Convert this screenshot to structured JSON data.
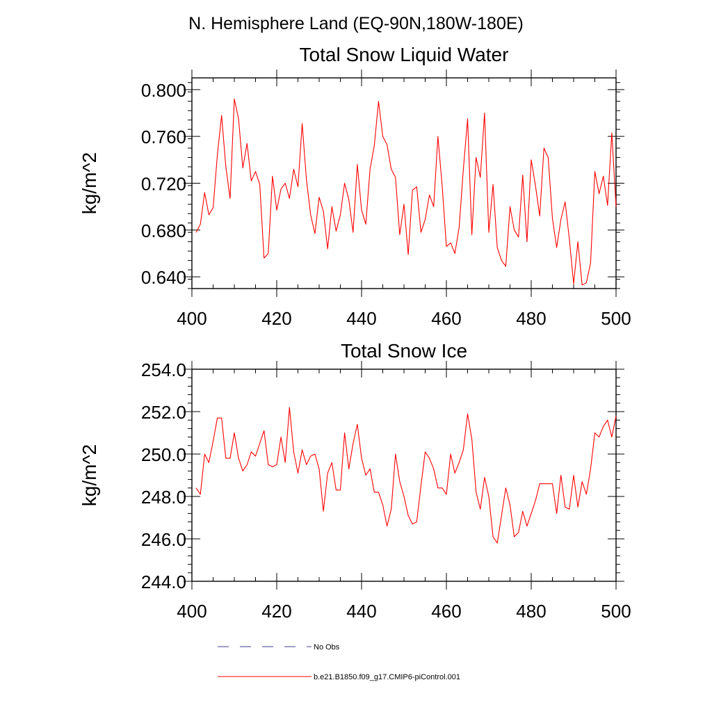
{
  "page": {
    "suptitle": "N. Hemisphere Land (EQ-90N,180W-180E)"
  },
  "legend": {
    "entries": [
      {
        "label": "No Obs",
        "color": "#3b3b8a",
        "dash": true
      },
      {
        "label": "b.e21.B1850.f09_g17.CMIP6-piControl.001",
        "color": "#ff0000",
        "dash": false
      }
    ]
  },
  "chart_data": [
    {
      "type": "line",
      "title": "Total Snow Liquid Water",
      "xlabel": "",
      "ylabel": "kg/m^2",
      "xlim": [
        400,
        500
      ],
      "ylim": [
        0.63,
        0.81
      ],
      "xticks": [
        400,
        420,
        440,
        460,
        480,
        500
      ],
      "xtick_labels": [
        "400",
        "420",
        "440",
        "460",
        "480",
        "500"
      ],
      "yticks": [
        0.64,
        0.68,
        0.72,
        0.76,
        0.8
      ],
      "ytick_labels": [
        "0.640",
        "0.680",
        "0.720",
        "0.760",
        "0.800"
      ],
      "grid": false,
      "series": [
        {
          "name": "b.e21.B1850.f09_g17.CMIP6-piControl.001",
          "color": "#ff0000",
          "x_start": 401,
          "x_step": 1,
          "values": [
            0.678,
            0.685,
            0.712,
            0.693,
            0.699,
            0.744,
            0.778,
            0.734,
            0.707,
            0.792,
            0.775,
            0.733,
            0.754,
            0.722,
            0.73,
            0.719,
            0.656,
            0.66,
            0.726,
            0.697,
            0.715,
            0.72,
            0.707,
            0.732,
            0.717,
            0.771,
            0.723,
            0.693,
            0.677,
            0.708,
            0.696,
            0.664,
            0.7,
            0.679,
            0.693,
            0.72,
            0.706,
            0.678,
            0.736,
            0.697,
            0.685,
            0.732,
            0.752,
            0.79,
            0.76,
            0.753,
            0.732,
            0.725,
            0.676,
            0.702,
            0.659,
            0.714,
            0.717,
            0.678,
            0.689,
            0.71,
            0.7,
            0.76,
            0.718,
            0.666,
            0.669,
            0.66,
            0.682,
            0.732,
            0.775,
            0.676,
            0.742,
            0.725,
            0.78,
            0.678,
            0.719,
            0.665,
            0.654,
            0.649,
            0.7,
            0.68,
            0.674,
            0.727,
            0.67,
            0.74,
            0.718,
            0.692,
            0.75,
            0.742,
            0.69,
            0.665,
            0.689,
            0.704,
            0.672,
            0.634,
            0.67,
            0.633,
            0.635,
            0.652,
            0.73,
            0.711,
            0.726,
            0.701,
            0.763,
            0.7
          ]
        }
      ]
    },
    {
      "type": "line",
      "title": "Total Snow Ice",
      "xlabel": "",
      "ylabel": "kg/m^2",
      "xlim": [
        400,
        500
      ],
      "ylim": [
        244.0,
        254.0
      ],
      "xticks": [
        400,
        420,
        440,
        460,
        480,
        500
      ],
      "xtick_labels": [
        "400",
        "420",
        "440",
        "460",
        "480",
        "500"
      ],
      "yticks": [
        244.0,
        246.0,
        248.0,
        250.0,
        252.0,
        254.0
      ],
      "ytick_labels": [
        "244.0",
        "246.0",
        "248.0",
        "250.0",
        "252.0",
        "254.0"
      ],
      "grid": false,
      "series": [
        {
          "name": "b.e21.B1850.f09_g17.CMIP6-piControl.001",
          "color": "#ff0000",
          "x_start": 401,
          "x_step": 1,
          "values": [
            248.4,
            248.1,
            250.0,
            249.6,
            250.6,
            251.7,
            251.7,
            249.8,
            249.8,
            251.0,
            249.8,
            249.2,
            249.5,
            250.1,
            249.9,
            250.5,
            251.1,
            249.5,
            249.4,
            249.5,
            250.8,
            249.6,
            252.2,
            250.1,
            249.1,
            250.2,
            249.5,
            249.9,
            250.0,
            249.3,
            247.3,
            249.1,
            249.6,
            248.3,
            248.3,
            251.0,
            249.3,
            250.5,
            251.4,
            249.8,
            249.0,
            249.3,
            248.2,
            248.2,
            247.6,
            246.6,
            247.4,
            250.0,
            248.7,
            248.0,
            247.1,
            246.7,
            246.8,
            248.5,
            250.1,
            249.8,
            249.3,
            248.4,
            248.4,
            248.1,
            250.0,
            249.1,
            249.6,
            250.2,
            251.9,
            250.7,
            248.2,
            247.4,
            248.9,
            248.0,
            246.1,
            245.8,
            247.1,
            248.4,
            247.6,
            246.1,
            246.3,
            247.3,
            246.6,
            247.2,
            247.8,
            248.6,
            248.6,
            248.6,
            248.6,
            247.2,
            249.0,
            247.5,
            247.4,
            249.0,
            247.5,
            248.7,
            248.1,
            249.3,
            251.0,
            250.8,
            251.3,
            251.6,
            250.8,
            251.8
          ]
        }
      ]
    }
  ]
}
